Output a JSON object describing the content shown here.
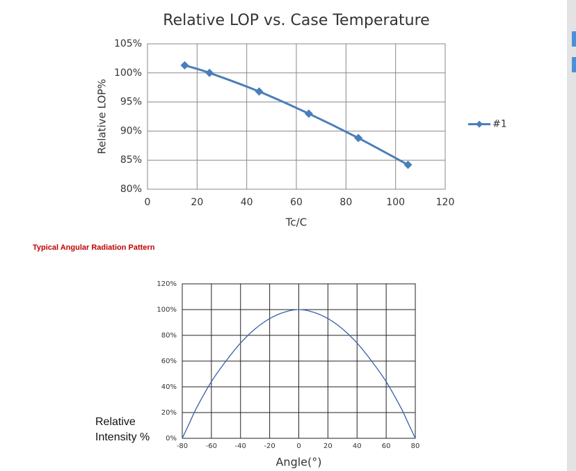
{
  "chart_data": [
    {
      "type": "line",
      "title": "Relative LOP vs. Case Temperature",
      "x_label": "Tc/C",
      "y_label": "Relative LOP%",
      "x": [
        15,
        25,
        45,
        65,
        85,
        105
      ],
      "series": [
        {
          "name": "#1",
          "color": "#4a7ebb",
          "values": [
            101.3,
            100,
            96.8,
            93,
            88.8,
            84.2
          ]
        }
      ],
      "xlim": [
        0,
        120
      ],
      "xticks": [
        0,
        20,
        40,
        60,
        80,
        100,
        120
      ],
      "ylim": [
        80,
        105
      ],
      "yticks": [
        {
          "value": 80,
          "label": "80%"
        },
        {
          "value": 85,
          "label": "85%"
        },
        {
          "value": 90,
          "label": "90%"
        },
        {
          "value": 95,
          "label": "95%"
        },
        {
          "value": 100,
          "label": "100%"
        },
        {
          "value": 105,
          "label": "105%"
        }
      ],
      "grid": true,
      "markers": true,
      "legend": "right"
    },
    {
      "type": "line",
      "x_label": "Angle(°)",
      "y_label": "Relative Intensity %",
      "x": [
        -80,
        -75,
        -70,
        -60,
        -50,
        -40,
        -30,
        -20,
        -10,
        0,
        10,
        20,
        30,
        40,
        50,
        60,
        70,
        75,
        80
      ],
      "values": [
        0,
        12,
        24,
        44,
        60,
        74,
        85,
        93,
        98,
        100,
        98,
        93,
        85,
        74,
        60,
        44,
        24,
        12,
        0
      ],
      "color": "#3a5fa8",
      "xlim": [
        -80,
        80
      ],
      "xticks": [
        -80,
        -60,
        -40,
        -20,
        0,
        20,
        40,
        60,
        80
      ],
      "ylim": [
        0,
        120
      ],
      "yticks": [
        {
          "value": 0,
          "label": "0%"
        },
        {
          "value": 20,
          "label": "20%"
        },
        {
          "value": 40,
          "label": "40%"
        },
        {
          "value": 60,
          "label": "60%"
        },
        {
          "value": 80,
          "label": "80%"
        },
        {
          "value": 100,
          "label": "100%"
        },
        {
          "value": 120,
          "label": "120%"
        }
      ],
      "grid": true,
      "markers": false
    }
  ],
  "section_heading": "Typical Angular Radiation Pattern"
}
